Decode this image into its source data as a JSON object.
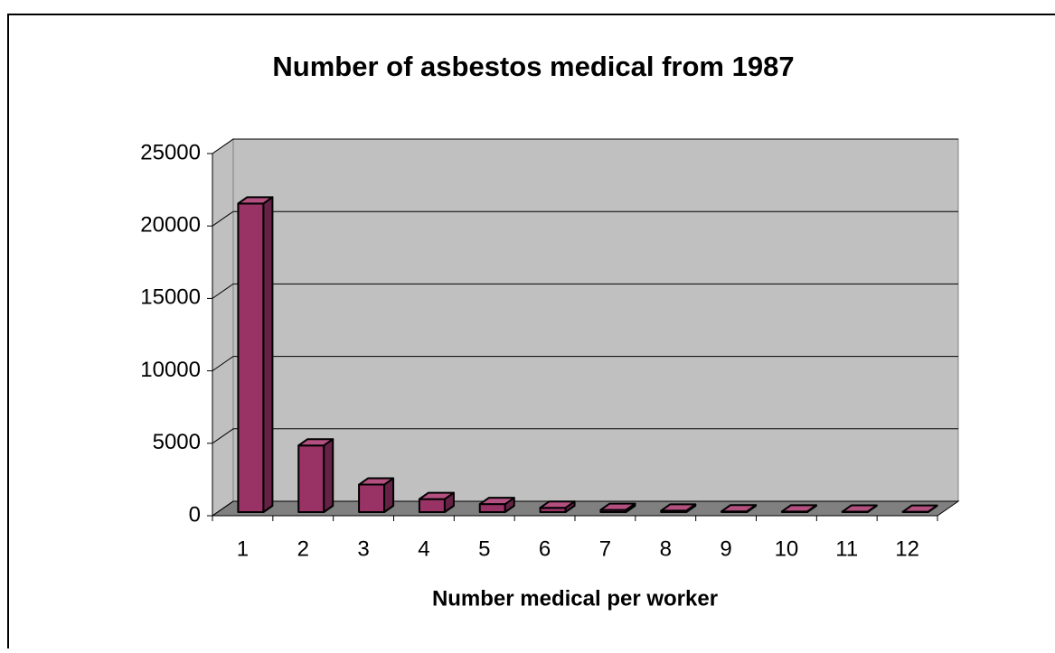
{
  "chart_data": {
    "type": "bar3d",
    "title": "Number of asbestos medical from 1987",
    "x_label": "Number medical per worker",
    "categories": [
      "1",
      "2",
      "3",
      "4",
      "5",
      "6",
      "7",
      "8",
      "9",
      "10",
      "11",
      "12"
    ],
    "values": [
      21300,
      4600,
      1900,
      900,
      550,
      300,
      150,
      100,
      50,
      40,
      30,
      20
    ],
    "color": "#993366",
    "ylim": [
      0,
      25000
    ],
    "yticks": [
      0,
      5000,
      10000,
      15000,
      20000,
      25000
    ],
    "grid": true
  }
}
